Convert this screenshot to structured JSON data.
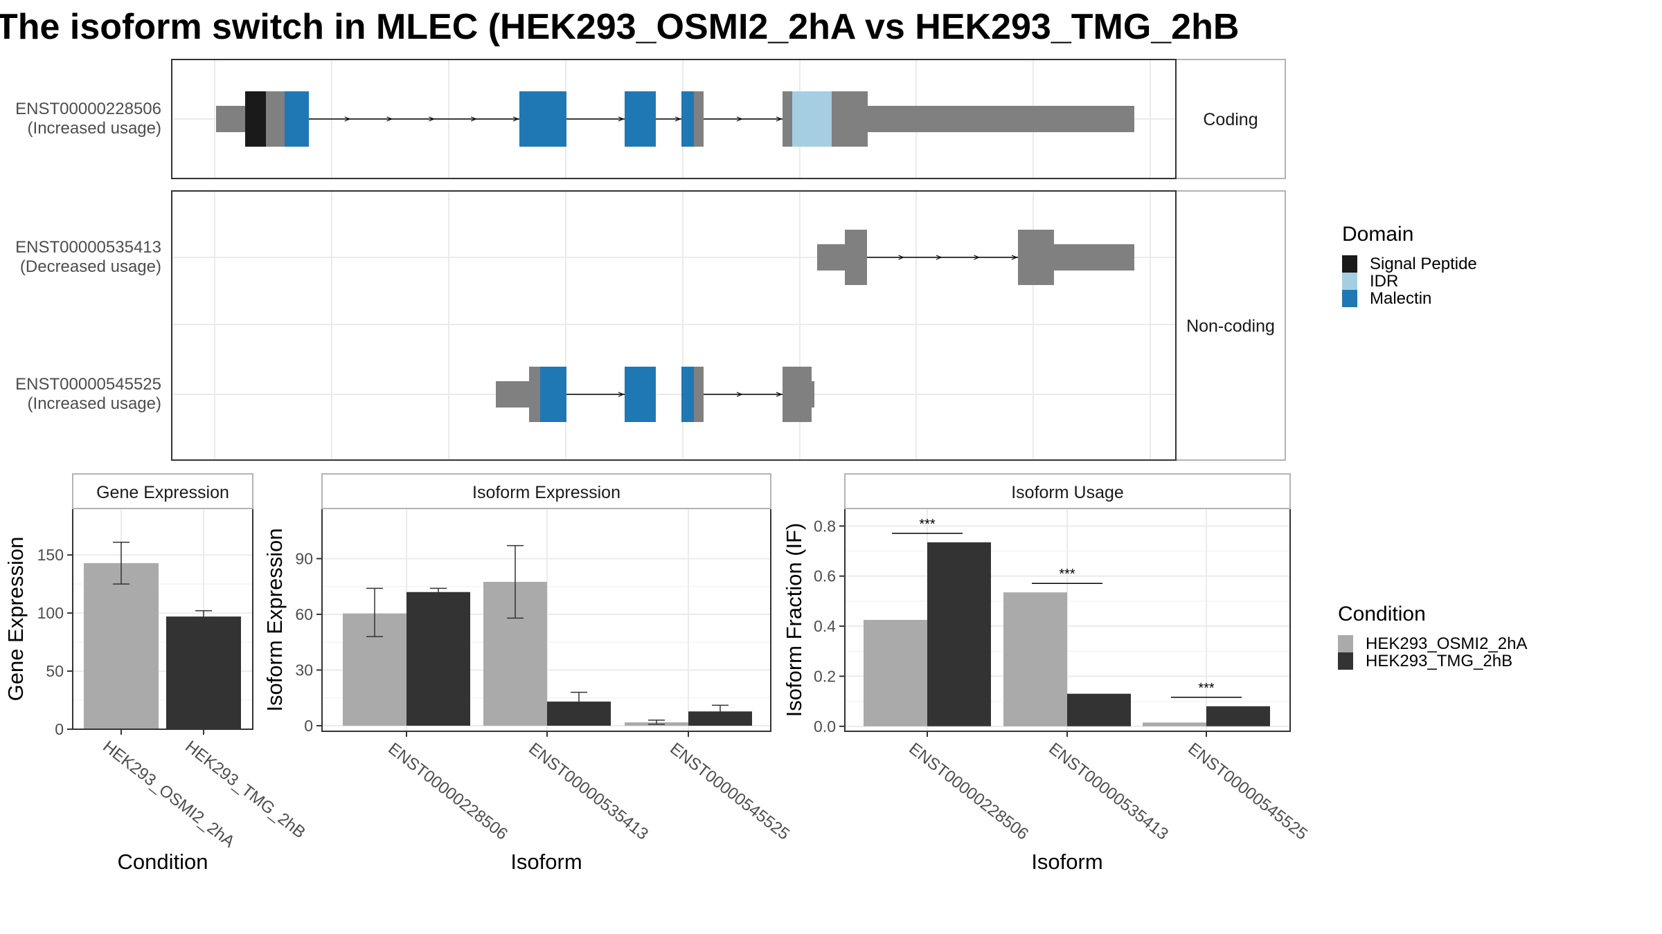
{
  "title": "The isoform switch in MLEC (HEK293_OSMI2_2hA vs HEK293_TMG_2hB",
  "colors": {
    "exon_grey": "#808080",
    "signal_peptide": "#1a1a1a",
    "idr": "#a6cee3",
    "malectin": "#1f78b4",
    "cond_a": "#aaaaaa",
    "cond_b": "#333333",
    "grid": "#ebebeb",
    "panel_border": "#333333",
    "strip_fill": "#ffffff",
    "strip_border": "#b3b3b3"
  },
  "structure": {
    "facets": [
      {
        "label": "Coding",
        "rows": 1
      },
      {
        "label": "Non-coding",
        "rows": 2
      }
    ],
    "transcripts": [
      {
        "id": "ENST00000228506",
        "status": "(Increased usage)",
        "facet": 0
      },
      {
        "id": "ENST00000535413",
        "status": "(Decreased usage)",
        "facet": 1
      },
      {
        "id": "ENST00000545525",
        "status": "(Increased usage)",
        "facet": 1
      }
    ],
    "domain_legend": {
      "title": "Domain",
      "items": [
        {
          "name": "Signal Peptide",
          "color": "#1a1a1a"
        },
        {
          "name": "IDR",
          "color": "#a6cee3"
        },
        {
          "name": "Malectin",
          "color": "#1f78b4"
        }
      ]
    }
  },
  "condition_legend": {
    "title": "Condition",
    "items": [
      {
        "name": "HEK293_OSMI2_2hA",
        "color": "#aaaaaa"
      },
      {
        "name": "HEK293_TMG_2hB",
        "color": "#333333"
      }
    ]
  },
  "chart_data": [
    {
      "type": "bar",
      "title": "Gene Expression",
      "xlabel": "Condition",
      "ylabel": "Gene Expression",
      "categories": [
        "HEK293_OSMI2_2hA",
        "HEK293_TMG_2hB"
      ],
      "values": [
        143,
        97
      ],
      "errors": [
        [
          125,
          161
        ],
        [
          93,
          102
        ]
      ],
      "ylim": [
        0,
        190
      ],
      "yticks": [
        0,
        50,
        100,
        150
      ]
    },
    {
      "type": "bar",
      "title": "Isoform Expression",
      "xlabel": "Isoform",
      "ylabel": "Isoform Expression",
      "categories": [
        "ENST00000228506",
        "ENST00000535413",
        "ENST00000545525"
      ],
      "series": [
        {
          "name": "HEK293_OSMI2_2hA",
          "values": [
            60.5,
            77.5,
            1.8
          ],
          "errors": [
            [
              48,
              74
            ],
            [
              58,
              97
            ],
            [
              0.8,
              3
            ]
          ]
        },
        {
          "name": "HEK293_TMG_2hB",
          "values": [
            72,
            13,
            7.7
          ],
          "errors": [
            [
              70,
              74
            ],
            [
              8.5,
              18
            ],
            [
              5,
              11
            ]
          ]
        }
      ],
      "ylim": [
        -3,
        117
      ],
      "yticks": [
        0,
        30,
        60,
        90
      ]
    },
    {
      "type": "bar",
      "title": "Isoform Usage",
      "xlabel": "Isoform",
      "ylabel": "Isoform Fraction (IF)",
      "categories": [
        "ENST00000228506",
        "ENST00000535413",
        "ENST00000545525"
      ],
      "series": [
        {
          "name": "HEK293_OSMI2_2hA",
          "values": [
            0.425,
            0.535,
            0.015
          ]
        },
        {
          "name": "HEK293_TMG_2hB",
          "values": [
            0.735,
            0.13,
            0.08
          ]
        }
      ],
      "significance": [
        "***",
        "***",
        "***"
      ],
      "ylim": [
        -0.02,
        0.87
      ],
      "yticks": [
        "0.0",
        "0.2",
        "0.4",
        "0.6",
        "0.8"
      ]
    }
  ]
}
